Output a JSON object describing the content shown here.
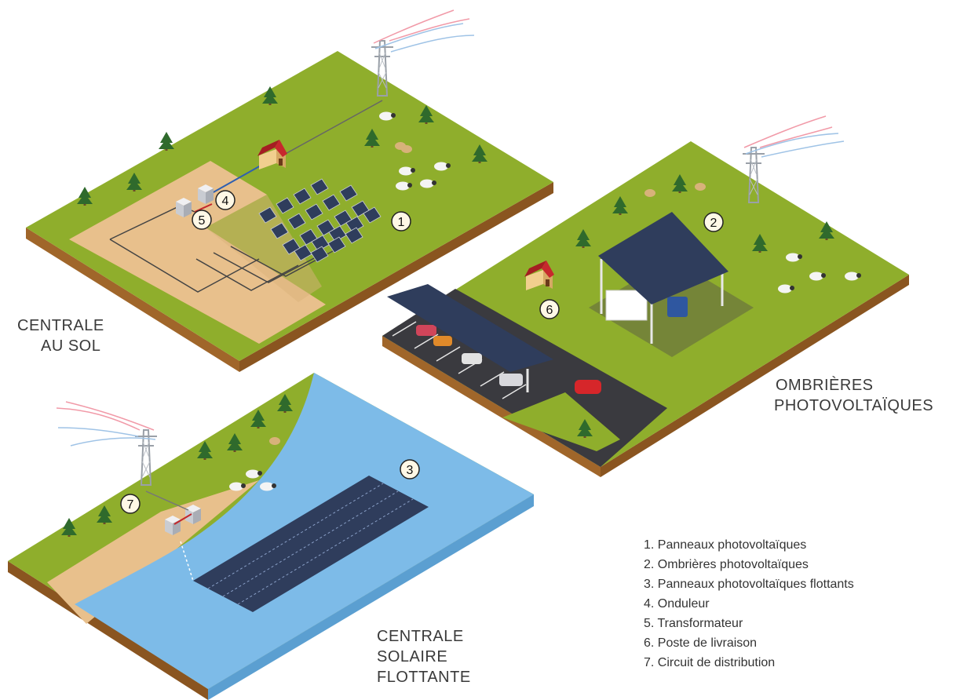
{
  "sites": {
    "ground": {
      "line1": "CENTRALE",
      "line2": "AU SOL"
    },
    "canopy": {
      "line1": "OMBRIÈRES",
      "line2": "PHOTOVOLTAÏQUES"
    },
    "floating": {
      "line1": "CENTRALE",
      "line2": "SOLAIRE",
      "line3": "FLOTTANTE"
    }
  },
  "markers": [
    "1",
    "2",
    "3",
    "4",
    "5",
    "6",
    "7"
  ],
  "legend": [
    "1. Panneaux photovoltaïques",
    "2. Ombrières photovoltaïques",
    "3. Panneaux photovoltaïques flottants",
    "4. Onduleur",
    "5. Transformateur",
    "6. Poste de livraison",
    "7. Circuit de distribution"
  ],
  "colors": {
    "grass": "#8fae2c",
    "soil": "#e8c08c",
    "water": "#7dbbe8",
    "panel": "#2f3d5c",
    "road": "#3a3a3f",
    "edge": "#a0662a"
  }
}
